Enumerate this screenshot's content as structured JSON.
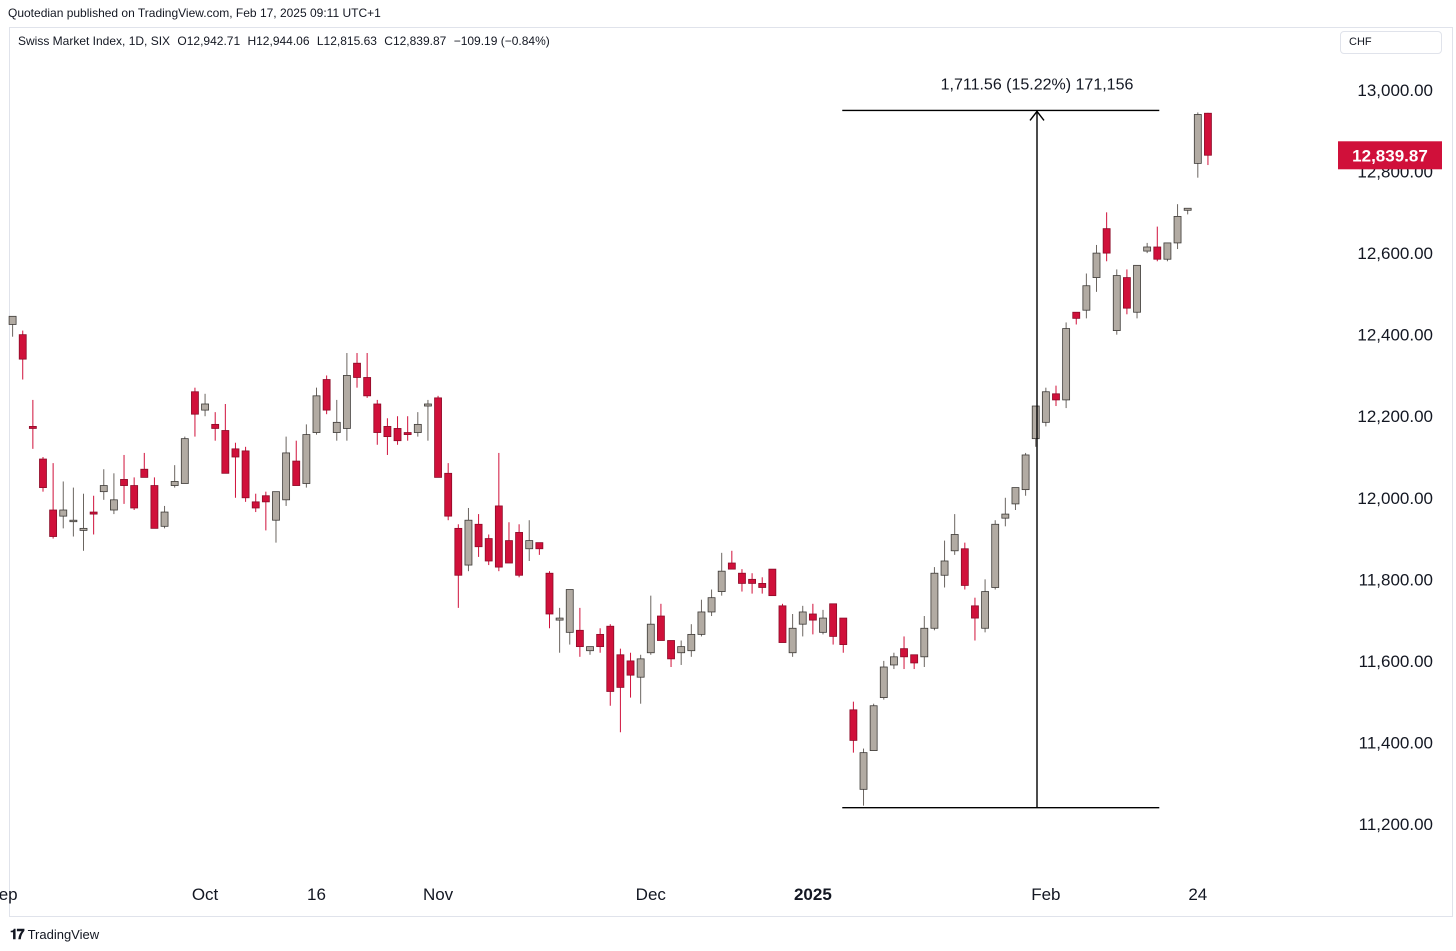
{
  "header": {
    "published_line": "Quotedian published on TradingView.com, Feb 17, 2025 09:11 UTC+1"
  },
  "legend": {
    "symbol": "Swiss Market Index, 1D, SIX",
    "open": "O12,942.71",
    "high": "H12,944.06",
    "low": "L12,815.63",
    "close": "C12,839.87",
    "change": "−109.19 (−0.84%)"
  },
  "currency": {
    "label": "CHF"
  },
  "price_badge": {
    "label": "12,839.87"
  },
  "measure": {
    "label": "1,711.56 (15.22%) 171,156"
  },
  "footer": {
    "brand": "TradingView",
    "logo_icon": "tradingview-logo-icon"
  },
  "colors": {
    "up": "#b2aba3",
    "down": "#d0103a",
    "badge": "#d0103a",
    "line": "#000000"
  },
  "chart_data": {
    "type": "candlestick",
    "title": "Swiss Market Index, 1D, SIX",
    "y_axis": {
      "ticks": [
        11200,
        11400,
        11600,
        11800,
        12000,
        12200,
        12400,
        12600,
        12800,
        13000
      ],
      "tick_labels": [
        "11,200.00",
        "11,400.00",
        "11,600.00",
        "11,800.00",
        "12,000.00",
        "12,200.00",
        "12,400.00",
        "12,600.00",
        "12,800.00",
        "13,000.00"
      ],
      "range": [
        11135,
        13095
      ],
      "currency": "CHF"
    },
    "x_axis": {
      "labels": [
        {
          "label": "Sep",
          "index": -1,
          "bold": false
        },
        {
          "label": "Oct",
          "index": 19,
          "bold": false
        },
        {
          "label": "16",
          "index": 30,
          "bold": false
        },
        {
          "label": "Nov",
          "index": 42,
          "bold": false
        },
        {
          "label": "Dec",
          "index": 63,
          "bold": false
        },
        {
          "label": "2025",
          "index": 79,
          "bold": true
        },
        {
          "label": "Feb",
          "index": 102,
          "bold": false
        },
        {
          "label": "24",
          "index": 117,
          "bold": false
        }
      ]
    },
    "candles": [
      {
        "o": 12425,
        "h": 12445,
        "l": 12395,
        "c": 12445
      },
      {
        "o": 12400,
        "h": 12410,
        "l": 12290,
        "c": 12340
      },
      {
        "o": 12175,
        "h": 12240,
        "l": 12120,
        "c": 12170
      },
      {
        "o": 12095,
        "h": 12100,
        "l": 12015,
        "c": 12025
      },
      {
        "o": 11970,
        "h": 12085,
        "l": 11900,
        "c": 11905
      },
      {
        "o": 11955,
        "h": 12040,
        "l": 11925,
        "c": 11970
      },
      {
        "o": 11945,
        "h": 12025,
        "l": 11905,
        "c": 11945
      },
      {
        "o": 11920,
        "h": 12010,
        "l": 11870,
        "c": 11925
      },
      {
        "o": 11965,
        "h": 12005,
        "l": 11910,
        "c": 11960
      },
      {
        "o": 12015,
        "h": 12070,
        "l": 11995,
        "c": 12030
      },
      {
        "o": 11970,
        "h": 12060,
        "l": 11960,
        "c": 11995
      },
      {
        "o": 12045,
        "h": 12105,
        "l": 11985,
        "c": 12030
      },
      {
        "o": 12030,
        "h": 12050,
        "l": 11970,
        "c": 11975
      },
      {
        "o": 12070,
        "h": 12110,
        "l": 12050,
        "c": 12050
      },
      {
        "o": 12030,
        "h": 12050,
        "l": 11925,
        "c": 11925
      },
      {
        "o": 11930,
        "h": 11980,
        "l": 11925,
        "c": 11965
      },
      {
        "o": 12030,
        "h": 12080,
        "l": 12025,
        "c": 12040
      },
      {
        "o": 12035,
        "h": 12150,
        "l": 12035,
        "c": 12145
      },
      {
        "o": 12260,
        "h": 12270,
        "l": 12150,
        "c": 12205
      },
      {
        "o": 12215,
        "h": 12255,
        "l": 12200,
        "c": 12230
      },
      {
        "o": 12180,
        "h": 12210,
        "l": 12140,
        "c": 12170
      },
      {
        "o": 12165,
        "h": 12230,
        "l": 12060,
        "c": 12060
      },
      {
        "o": 12120,
        "h": 12135,
        "l": 12000,
        "c": 12100
      },
      {
        "o": 12115,
        "h": 12125,
        "l": 11990,
        "c": 12000
      },
      {
        "o": 11990,
        "h": 12010,
        "l": 11965,
        "c": 11975
      },
      {
        "o": 12005,
        "h": 12015,
        "l": 11920,
        "c": 11990
      },
      {
        "o": 11945,
        "h": 12010,
        "l": 11890,
        "c": 12015
      },
      {
        "o": 11995,
        "h": 12150,
        "l": 11980,
        "c": 12110
      },
      {
        "o": 12090,
        "h": 12140,
        "l": 12040,
        "c": 12030
      },
      {
        "o": 12035,
        "h": 12180,
        "l": 12025,
        "c": 12155
      },
      {
        "o": 12160,
        "h": 12270,
        "l": 12155,
        "c": 12250
      },
      {
        "o": 12290,
        "h": 12300,
        "l": 12205,
        "c": 12215
      },
      {
        "o": 12160,
        "h": 12240,
        "l": 12140,
        "c": 12185
      },
      {
        "o": 12170,
        "h": 12355,
        "l": 12140,
        "c": 12300
      },
      {
        "o": 12330,
        "h": 12355,
        "l": 12270,
        "c": 12295
      },
      {
        "o": 12295,
        "h": 12355,
        "l": 12245,
        "c": 12250
      },
      {
        "o": 12230,
        "h": 12240,
        "l": 12130,
        "c": 12160
      },
      {
        "o": 12175,
        "h": 12195,
        "l": 12105,
        "c": 12150
      },
      {
        "o": 12170,
        "h": 12200,
        "l": 12130,
        "c": 12140
      },
      {
        "o": 12160,
        "h": 12200,
        "l": 12140,
        "c": 12155
      },
      {
        "o": 12160,
        "h": 12210,
        "l": 12150,
        "c": 12180
      },
      {
        "o": 12225,
        "h": 12240,
        "l": 12140,
        "c": 12230
      },
      {
        "o": 12245,
        "h": 12250,
        "l": 12050,
        "c": 12050
      },
      {
        "o": 12060,
        "h": 12085,
        "l": 11945,
        "c": 11955
      },
      {
        "o": 11925,
        "h": 11935,
        "l": 11730,
        "c": 11810
      },
      {
        "o": 11835,
        "h": 11975,
        "l": 11820,
        "c": 11945
      },
      {
        "o": 11935,
        "h": 11960,
        "l": 11855,
        "c": 11880
      },
      {
        "o": 11900,
        "h": 11910,
        "l": 11835,
        "c": 11845
      },
      {
        "o": 11980,
        "h": 12110,
        "l": 11820,
        "c": 11830
      },
      {
        "o": 11895,
        "h": 11940,
        "l": 11840,
        "c": 11840
      },
      {
        "o": 11915,
        "h": 11935,
        "l": 11805,
        "c": 11810
      },
      {
        "o": 11875,
        "h": 11945,
        "l": 11845,
        "c": 11895
      },
      {
        "o": 11890,
        "h": 11885,
        "l": 11860,
        "c": 11875
      },
      {
        "o": 11815,
        "h": 11820,
        "l": 11680,
        "c": 11715
      },
      {
        "o": 11700,
        "h": 11730,
        "l": 11620,
        "c": 11705
      },
      {
        "o": 11670,
        "h": 11760,
        "l": 11640,
        "c": 11775
      },
      {
        "o": 11675,
        "h": 11730,
        "l": 11610,
        "c": 11635
      },
      {
        "o": 11625,
        "h": 11630,
        "l": 11615,
        "c": 11635
      },
      {
        "o": 11665,
        "h": 11680,
        "l": 11620,
        "c": 11635
      },
      {
        "o": 11685,
        "h": 11690,
        "l": 11490,
        "c": 11525
      },
      {
        "o": 11615,
        "h": 11630,
        "l": 11425,
        "c": 11535
      },
      {
        "o": 11600,
        "h": 11620,
        "l": 11510,
        "c": 11565
      },
      {
        "o": 11560,
        "h": 11615,
        "l": 11495,
        "c": 11605
      },
      {
        "o": 11620,
        "h": 11760,
        "l": 11615,
        "c": 11690
      },
      {
        "o": 11710,
        "h": 11740,
        "l": 11665,
        "c": 11650
      },
      {
        "o": 11650,
        "h": 11640,
        "l": 11585,
        "c": 11605
      },
      {
        "o": 11620,
        "h": 11650,
        "l": 11590,
        "c": 11635
      },
      {
        "o": 11625,
        "h": 11690,
        "l": 11610,
        "c": 11665
      },
      {
        "o": 11665,
        "h": 11750,
        "l": 11660,
        "c": 11720
      },
      {
        "o": 11720,
        "h": 11775,
        "l": 11710,
        "c": 11755
      },
      {
        "o": 11770,
        "h": 11865,
        "l": 11760,
        "c": 11820
      },
      {
        "o": 11840,
        "h": 11870,
        "l": 11835,
        "c": 11825
      },
      {
        "o": 11815,
        "h": 11825,
        "l": 11770,
        "c": 11790
      },
      {
        "o": 11800,
        "h": 11815,
        "l": 11765,
        "c": 11790
      },
      {
        "o": 11790,
        "h": 11805,
        "l": 11765,
        "c": 11780
      },
      {
        "o": 11825,
        "h": 11825,
        "l": 11760,
        "c": 11760
      },
      {
        "o": 11735,
        "h": 11740,
        "l": 11655,
        "c": 11645
      },
      {
        "o": 11620,
        "h": 11715,
        "l": 11610,
        "c": 11680
      },
      {
        "o": 11690,
        "h": 11735,
        "l": 11660,
        "c": 11720
      },
      {
        "o": 11715,
        "h": 11740,
        "l": 11665,
        "c": 11700
      },
      {
        "o": 11670,
        "h": 11725,
        "l": 11665,
        "c": 11705
      },
      {
        "o": 11740,
        "h": 11735,
        "l": 11640,
        "c": 11660
      },
      {
        "o": 11705,
        "h": 11705,
        "l": 11620,
        "c": 11640
      },
      {
        "o": 11480,
        "h": 11500,
        "l": 11375,
        "c": 11405
      },
      {
        "o": 11285,
        "h": 11385,
        "l": 11245,
        "c": 11375
      },
      {
        "o": 11380,
        "h": 11495,
        "l": 11380,
        "c": 11490
      },
      {
        "o": 11510,
        "h": 11600,
        "l": 11505,
        "c": 11585
      },
      {
        "o": 11590,
        "h": 11620,
        "l": 11580,
        "c": 11610
      },
      {
        "o": 11630,
        "h": 11660,
        "l": 11580,
        "c": 11610
      },
      {
        "o": 11615,
        "h": 11600,
        "l": 11580,
        "c": 11595
      },
      {
        "o": 11610,
        "h": 11710,
        "l": 11585,
        "c": 11680
      },
      {
        "o": 11680,
        "h": 11830,
        "l": 11675,
        "c": 11815
      },
      {
        "o": 11810,
        "h": 11895,
        "l": 11780,
        "c": 11845
      },
      {
        "o": 11870,
        "h": 11960,
        "l": 11860,
        "c": 11910
      },
      {
        "o": 11875,
        "h": 11890,
        "l": 11775,
        "c": 11785
      },
      {
        "o": 11735,
        "h": 11755,
        "l": 11650,
        "c": 11705
      },
      {
        "o": 11680,
        "h": 11800,
        "l": 11670,
        "c": 11770
      },
      {
        "o": 11780,
        "h": 11945,
        "l": 11775,
        "c": 11935
      },
      {
        "o": 11950,
        "h": 12000,
        "l": 11930,
        "c": 11960
      },
      {
        "o": 11985,
        "h": 12015,
        "l": 11970,
        "c": 12025
      },
      {
        "o": 12020,
        "h": 12110,
        "l": 12005,
        "c": 12105
      },
      {
        "o": 12145,
        "h": 12215,
        "l": 12125,
        "c": 12225
      },
      {
        "o": 12185,
        "h": 12270,
        "l": 12175,
        "c": 12260
      },
      {
        "o": 12255,
        "h": 12275,
        "l": 12225,
        "c": 12240
      },
      {
        "o": 12240,
        "h": 12430,
        "l": 12220,
        "c": 12415
      },
      {
        "o": 12455,
        "h": 12450,
        "l": 12425,
        "c": 12440
      },
      {
        "o": 12460,
        "h": 12550,
        "l": 12440,
        "c": 12520
      },
      {
        "o": 12540,
        "h": 12620,
        "l": 12505,
        "c": 12600
      },
      {
        "o": 12660,
        "h": 12700,
        "l": 12580,
        "c": 12600
      },
      {
        "o": 12410,
        "h": 12560,
        "l": 12400,
        "c": 12545
      },
      {
        "o": 12540,
        "h": 12560,
        "l": 12450,
        "c": 12465
      },
      {
        "o": 12455,
        "h": 12570,
        "l": 12440,
        "c": 12570
      },
      {
        "o": 12605,
        "h": 12625,
        "l": 12600,
        "c": 12615
      },
      {
        "o": 12615,
        "h": 12665,
        "l": 12580,
        "c": 12585
      },
      {
        "o": 12585,
        "h": 12620,
        "l": 12580,
        "c": 12625
      },
      {
        "o": 12625,
        "h": 12720,
        "l": 12610,
        "c": 12690
      },
      {
        "o": 12705,
        "h": 12710,
        "l": 12695,
        "c": 12710
      },
      {
        "o": 12820,
        "h": 12945,
        "l": 12785,
        "c": 12940
      },
      {
        "o": 12943,
        "h": 12944,
        "l": 12816,
        "c": 12840
      }
    ],
    "last_price": 12839.87,
    "measure_annotation": {
      "label": "1,711.56 (15.22%) 171,156",
      "from_index": 82,
      "to_index": 113,
      "low": 11240,
      "high": 12950
    }
  }
}
